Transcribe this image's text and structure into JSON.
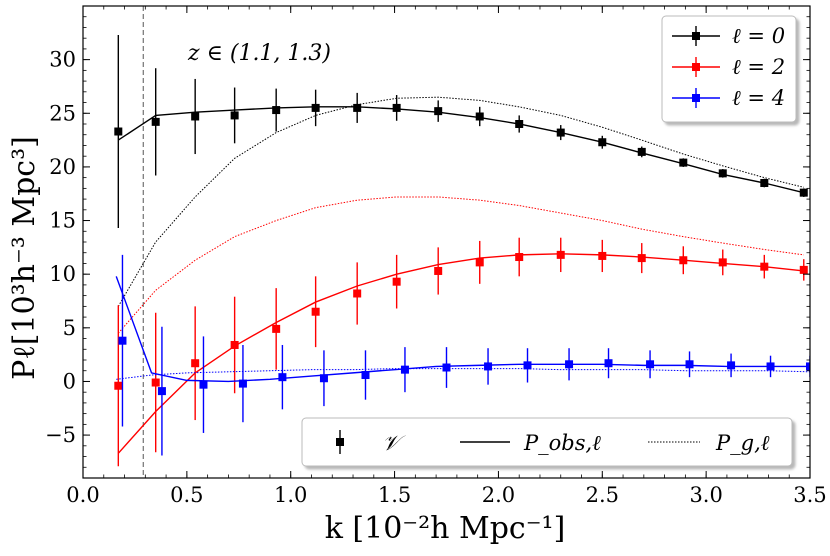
{
  "chart_data": {
    "type": "scatter",
    "annotation": "z ∈ (1.1, 1.3)",
    "xlabel": "k [10⁻²h Mpc⁻¹]",
    "ylabel": "Pℓ[10³h⁻³ Mpc³]",
    "xlim": [
      0.0,
      3.5
    ],
    "ylim": [
      -9,
      35
    ],
    "xticks": [
      0.0,
      0.5,
      1.0,
      1.5,
      2.0,
      2.5,
      3.0,
      3.5
    ],
    "yticks": [
      -5,
      0,
      5,
      10,
      15,
      20,
      25,
      30
    ],
    "xtick_labels": [
      "0.0",
      "0.5",
      "1.0",
      "1.5",
      "2.0",
      "2.5",
      "3.0",
      "3.5"
    ],
    "ytick_labels": [
      "−5",
      "0",
      "5",
      "10",
      "15",
      "20",
      "25",
      "30"
    ],
    "vline_x": 0.29,
    "legend_top": {
      "position": "top-right",
      "entries": [
        {
          "label": "ℓ = 0",
          "color": "#000000"
        },
        {
          "label": "ℓ = 2",
          "color": "#ff0000"
        },
        {
          "label": "ℓ = 4",
          "color": "#0000ff"
        }
      ]
    },
    "legend_bottom": {
      "position": "lower-right",
      "entries": [
        {
          "label": "𝒱",
          "style": "marker"
        },
        {
          "label": "P_obs,ℓ",
          "style": "solid"
        },
        {
          "label": "P_g,ℓ",
          "style": "dotted"
        }
      ]
    },
    "series": [
      {
        "name": "ℓ = 0",
        "color": "#000000",
        "points": {
          "x": [
            0.17,
            0.35,
            0.54,
            0.73,
            0.93,
            1.12,
            1.32,
            1.51,
            1.71,
            1.91,
            2.1,
            2.3,
            2.5,
            2.69,
            2.89,
            3.08,
            3.28,
            3.47
          ],
          "y": [
            23.3,
            24.2,
            24.7,
            24.8,
            25.3,
            25.5,
            25.5,
            25.5,
            25.2,
            24.7,
            24.0,
            23.2,
            22.3,
            21.4,
            20.4,
            19.4,
            18.5,
            17.6
          ],
          "err": [
            9.0,
            5.0,
            3.5,
            2.6,
            2.0,
            1.7,
            1.4,
            1.2,
            1.0,
            0.9,
            0.8,
            0.7,
            0.6,
            0.5,
            0.4,
            0.4,
            0.4,
            0.4
          ]
        },
        "model": {
          "x": [
            0.17,
            0.35,
            0.54,
            0.73,
            0.93,
            1.12,
            1.32,
            1.51,
            1.71,
            1.91,
            2.1,
            2.3,
            2.5,
            2.69,
            2.89,
            3.08,
            3.28,
            3.47
          ],
          "y": [
            22.5,
            24.8,
            25.1,
            25.3,
            25.5,
            25.6,
            25.6,
            25.4,
            25.1,
            24.6,
            24.0,
            23.2,
            22.3,
            21.3,
            20.3,
            19.3,
            18.5,
            17.6
          ]
        },
        "pg": {
          "x": [
            0.17,
            0.35,
            0.54,
            0.73,
            0.93,
            1.12,
            1.32,
            1.51,
            1.71,
            1.91,
            2.1,
            2.3,
            2.5,
            2.69,
            2.89,
            3.08,
            3.28,
            3.47
          ],
          "y": [
            7.0,
            13.0,
            17.2,
            20.8,
            23.2,
            24.8,
            25.8,
            26.4,
            26.5,
            26.2,
            25.6,
            24.8,
            23.7,
            22.5,
            21.2,
            20.1,
            19.0,
            18.1
          ]
        }
      },
      {
        "name": "ℓ = 2",
        "color": "#ff0000",
        "points": {
          "x": [
            0.17,
            0.35,
            0.54,
            0.73,
            0.93,
            1.12,
            1.32,
            1.51,
            1.71,
            1.91,
            2.1,
            2.3,
            2.5,
            2.69,
            2.89,
            3.08,
            3.28,
            3.47
          ],
          "y": [
            -0.4,
            -0.1,
            1.7,
            3.4,
            4.9,
            6.5,
            8.2,
            9.3,
            10.3,
            11.1,
            11.6,
            11.8,
            11.7,
            11.5,
            11.3,
            11.1,
            10.7,
            10.4
          ],
          "err": [
            7.5,
            6.5,
            5.3,
            4.5,
            3.8,
            3.3,
            2.9,
            2.5,
            2.2,
            2.0,
            1.8,
            1.6,
            1.5,
            1.4,
            1.3,
            1.2,
            1.1,
            1.0
          ]
        },
        "model": {
          "x": [
            0.17,
            0.35,
            0.54,
            0.73,
            0.93,
            1.12,
            1.32,
            1.51,
            1.71,
            1.91,
            2.1,
            2.3,
            2.5,
            2.69,
            2.89,
            3.08,
            3.28,
            3.47
          ],
          "y": [
            -6.7,
            -2.8,
            0.8,
            3.3,
            5.5,
            7.4,
            8.9,
            10.0,
            10.9,
            11.5,
            11.8,
            11.9,
            11.8,
            11.6,
            11.3,
            11.0,
            10.7,
            10.3
          ]
        },
        "pg": {
          "x": [
            0.17,
            0.35,
            0.54,
            0.73,
            0.93,
            1.12,
            1.32,
            1.51,
            1.71,
            1.91,
            2.1,
            2.3,
            2.5,
            2.69,
            2.89,
            3.08,
            3.28,
            3.47
          ],
          "y": [
            4.5,
            8.5,
            11.3,
            13.5,
            15.0,
            16.2,
            16.9,
            17.2,
            17.2,
            16.9,
            16.4,
            15.7,
            15.0,
            14.2,
            13.5,
            12.9,
            12.3,
            11.8
          ]
        }
      },
      {
        "name": "ℓ = 4",
        "color": "#0000ff",
        "points": {
          "x": [
            0.19,
            0.38,
            0.58,
            0.77,
            0.96,
            1.16,
            1.36,
            1.55,
            1.75,
            1.95,
            2.14,
            2.34,
            2.53,
            2.73,
            2.92,
            3.12,
            3.31,
            3.5
          ],
          "y": [
            3.8,
            -0.9,
            -0.3,
            -0.2,
            0.4,
            0.3,
            0.6,
            1.1,
            1.3,
            1.4,
            1.5,
            1.6,
            1.7,
            1.6,
            1.6,
            1.5,
            1.4,
            1.4
          ],
          "err": [
            8.0,
            6.0,
            4.5,
            3.6,
            3.0,
            2.6,
            2.3,
            2.1,
            1.9,
            1.7,
            1.6,
            1.5,
            1.4,
            1.3,
            1.2,
            1.1,
            1.0,
            1.0
          ]
        },
        "model": {
          "x": [
            0.16,
            0.33,
            0.5,
            0.7,
            0.9,
            1.1,
            1.3,
            1.5,
            1.7,
            1.9,
            2.1,
            2.3,
            2.5,
            2.7,
            2.9,
            3.1,
            3.3,
            3.5
          ],
          "y": [
            9.8,
            0.8,
            0.1,
            0.0,
            0.2,
            0.5,
            0.8,
            1.1,
            1.4,
            1.5,
            1.6,
            1.6,
            1.6,
            1.5,
            1.5,
            1.4,
            1.4,
            1.4
          ]
        },
        "pg": {
          "x": [
            0.16,
            0.33,
            0.5,
            0.7,
            0.9,
            1.1,
            1.3,
            1.5,
            1.7,
            1.9,
            2.1,
            2.3,
            2.5,
            2.7,
            2.9,
            3.1,
            3.3,
            3.5
          ],
          "y": [
            0.2,
            0.6,
            0.8,
            0.9,
            1.0,
            1.1,
            1.1,
            1.2,
            1.2,
            1.2,
            1.2,
            1.1,
            1.1,
            1.1,
            1.0,
            1.0,
            1.0,
            0.9
          ]
        }
      }
    ]
  }
}
